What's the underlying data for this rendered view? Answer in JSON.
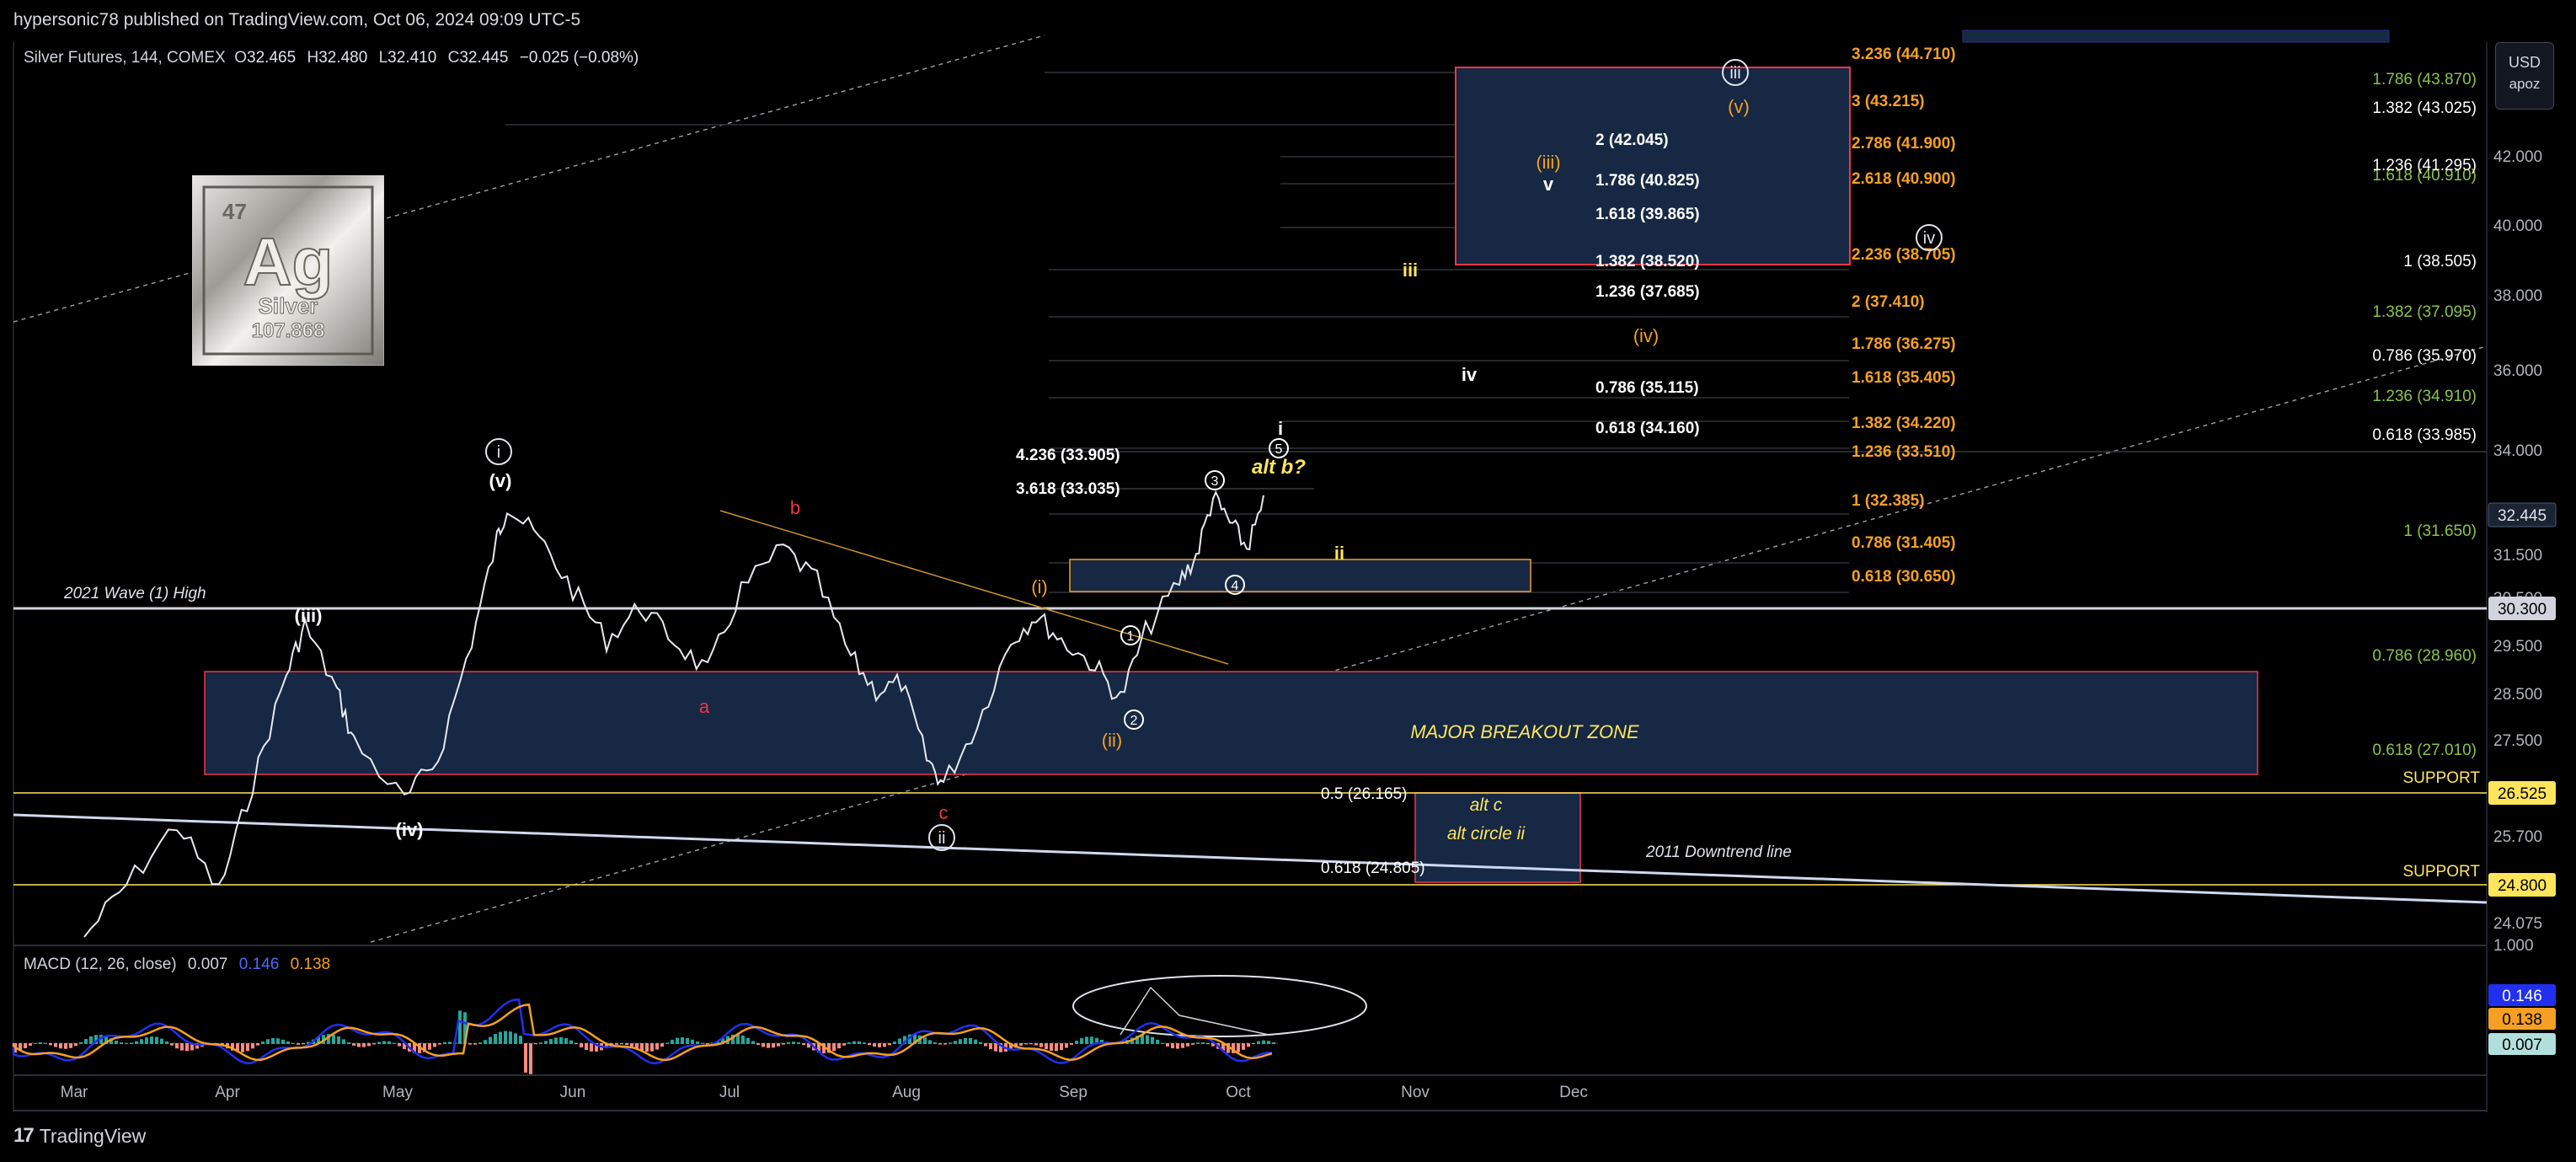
{
  "header": {
    "published": "hypersonic78 published on TradingView.com, Oct 06, 2024 09:09 UTC-5"
  },
  "legend": {
    "symbol": "Silver Futures, 144, COMEX",
    "o_label": "O",
    "o": "32.465",
    "h_label": "H",
    "h": "32.480",
    "l_label": "L",
    "l": "32.410",
    "c_label": "C",
    "c": "32.445",
    "change": "−0.025 (−0.08%)"
  },
  "scale_controls": {
    "currency": "USD",
    "mode": "apoz"
  },
  "element_card": {
    "number": "47",
    "symbol": "Ag",
    "name": "Silver",
    "weight": "107.868"
  },
  "y_axis": {
    "ticks": [
      "42.000",
      "40.000",
      "38.000",
      "36.000",
      "34.000",
      "31.500",
      "29.500",
      "28.500",
      "27.500",
      "25.700",
      "24.075",
      "1.000"
    ],
    "partial_tick": "30.500",
    "price_badges": [
      {
        "text": "32.445",
        "bg": "#1c2433",
        "fg": "#e0e3eb"
      },
      {
        "text": "30.300",
        "bg": "#d1d4dc",
        "fg": "#000000"
      },
      {
        "text": "26.525",
        "bg": "#ffe55c",
        "fg": "#000000"
      },
      {
        "text": "24.800",
        "bg": "#ffe55c",
        "fg": "#000000"
      }
    ],
    "macd_badges": [
      {
        "text": "0.146",
        "bg": "#2130f0",
        "fg": "#ffffff"
      },
      {
        "text": "0.138",
        "bg": "#f5a024",
        "fg": "#000000"
      },
      {
        "text": "0.007",
        "bg": "#b2dfdb",
        "fg": "#000000"
      }
    ]
  },
  "x_axis": {
    "months": [
      "Mar",
      "Apr",
      "May",
      "Jun",
      "Jul",
      "Aug",
      "Sep",
      "Oct",
      "Nov",
      "Dec"
    ]
  },
  "horizontal_levels": {
    "wave1_high_label": "2021 Wave (1) High",
    "support_label_1": "SUPPORT",
    "support_label_2": "SUPPORT",
    "downtrend_label": "2011 Downtrend line",
    "breakout_zone_label": "MAJOR BREAKOUT ZONE"
  },
  "fib_white_mid": [
    "2 (42.045)",
    "1.786 (40.825)",
    "1.618 (39.865)",
    "1.382 (38.520)",
    "1.236 (37.685)",
    "0.786 (35.115)",
    "0.618 (34.160)"
  ],
  "fib_white_left": [
    "4.236 (33.905)",
    "3.618 (33.035)"
  ],
  "fib_orange": [
    "3.236 (44.710)",
    "3 (43.215)",
    "2.786 (41.900)",
    "2.618 (40.900)",
    "2.236 (38.705)",
    "2 (37.410)",
    "1.786 (36.275)",
    "1.618 (35.405)",
    "1.382 (34.220)",
    "1.236 (33.510)",
    "1 (32.385)",
    "0.786 (31.405)",
    "0.618 (30.650)"
  ],
  "fib_right_green": [
    "1.786 (43.870)",
    "1.618 (40.910)",
    "1.382 (37.095)",
    "1.236 (34.910)",
    "1 (31.650)",
    "0.786 (28.960)",
    "0.618 (27.010)"
  ],
  "fib_right_white": [
    "1.382 (43.025)",
    "1.236 (41.295)",
    "1 (38.505)",
    "0.786 (35.970)",
    "0.618 (33.985)"
  ],
  "fib_lower": [
    "0.5 (26.165)",
    "0.618 (24.805)"
  ],
  "alt_box_labels": [
    "alt c",
    "alt circle ii"
  ],
  "wave_labels": {
    "circle_i": "i",
    "v_paren": "(v)",
    "iii_paren": "(iii)",
    "iv_paren": "(iv)",
    "a": "a",
    "b": "b",
    "c": "c",
    "circle_ii": "ii",
    "i_orange": "(i)",
    "ii_orange": "(ii)",
    "iii_orange": "(iii)",
    "iv_orange": "(iv)",
    "v_orange": "(v)",
    "c1": "1",
    "c2": "2",
    "c3": "3",
    "c4": "4",
    "c5": "5",
    "i_small": "i",
    "ii_small": "ii",
    "iii_small": "iii",
    "iv_small": "iv",
    "v_small": "v",
    "alt_b": "alt b?",
    "circle_iii": "iii",
    "circle_iv": "iv"
  },
  "macd": {
    "title": "MACD (12, 26, close)",
    "hist": "0.007",
    "macd": "0.146",
    "signal": "0.138"
  },
  "colors": {
    "background": "#000000",
    "orange": "#f5a024",
    "green": "#8bc34a",
    "red": "#f23645",
    "yellow": "#ffe55c",
    "box_fill": "#162843",
    "macd_line": "#2130f0",
    "signal_line": "#f5a024"
  },
  "footer": {
    "brand": "TradingView"
  }
}
